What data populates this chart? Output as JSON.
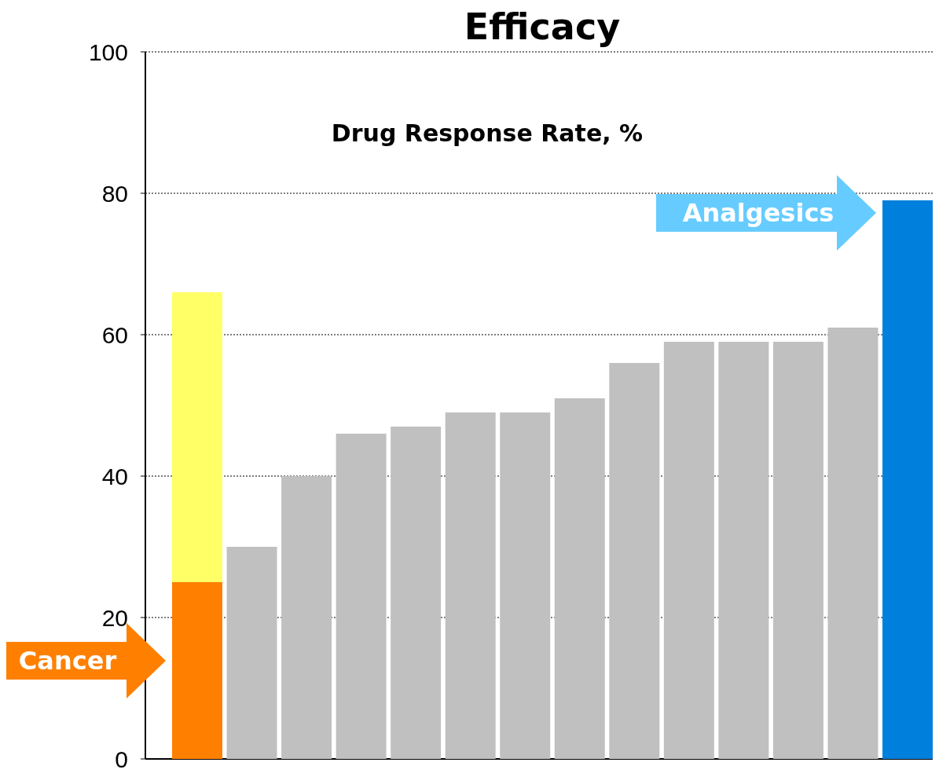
{
  "chart_data": {
    "type": "bar",
    "title": "Efficacy",
    "subtitle": "Drug Response Rate, %",
    "stacked": true,
    "categories": [
      null,
      null,
      null,
      null,
      null,
      null,
      null,
      null,
      null,
      null,
      null,
      null,
      null,
      null
    ],
    "series": [
      {
        "colors": [
          "#ff8000",
          "#c0c0c0",
          "#c0c0c0",
          "#c0c0c0",
          "#c0c0c0",
          "#c0c0c0",
          "#c0c0c0",
          "#c0c0c0",
          "#c0c0c0",
          "#c0c0c0",
          "#c0c0c0",
          "#c0c0c0",
          "#c0c0c0",
          "#0080dc"
        ],
        "values": [
          25,
          30,
          40,
          46,
          47,
          49,
          49,
          51,
          56,
          59,
          59,
          59,
          61,
          79
        ]
      },
      {
        "color": "#ffff66",
        "values": [
          41,
          null,
          null,
          null,
          null,
          null,
          null,
          null,
          null,
          null,
          null,
          null,
          null,
          null
        ]
      }
    ],
    "ylim": [
      0,
      100
    ],
    "yticks": [
      0,
      20,
      40,
      60,
      80,
      100
    ],
    "grid": "y",
    "line_style": "dotted",
    "annotations": [
      "Cancer",
      "Analgesics"
    ]
  }
}
